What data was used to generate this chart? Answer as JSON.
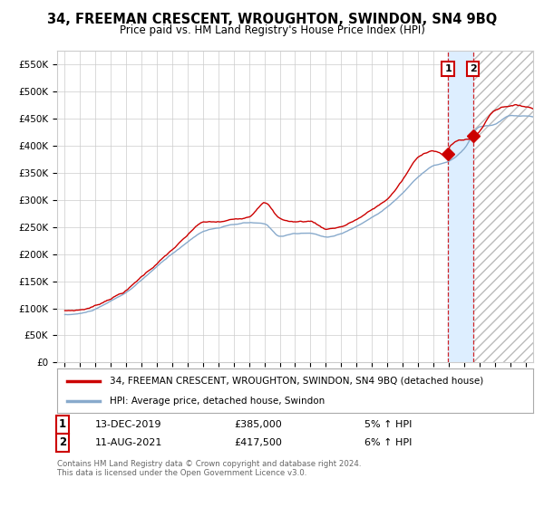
{
  "title": "34, FREEMAN CRESCENT, WROUGHTON, SWINDON, SN4 9BQ",
  "subtitle": "Price paid vs. HM Land Registry's House Price Index (HPI)",
  "legend_line1": "34, FREEMAN CRESCENT, WROUGHTON, SWINDON, SN4 9BQ (detached house)",
  "legend_line2": "HPI: Average price, detached house, Swindon",
  "transaction1_date": "13-DEC-2019",
  "transaction1_price": "£385,000",
  "transaction1_hpi": "5% ↑ HPI",
  "transaction2_date": "11-AUG-2021",
  "transaction2_price": "£417,500",
  "transaction2_hpi": "6% ↑ HPI",
  "footer": "Contains HM Land Registry data © Crown copyright and database right 2024.\nThis data is licensed under the Open Government Licence v3.0.",
  "ylim": [
    0,
    575000
  ],
  "yticks": [
    0,
    50000,
    100000,
    150000,
    200000,
    250000,
    300000,
    350000,
    400000,
    450000,
    500000,
    550000
  ],
  "ytick_labels": [
    "£0",
    "£50K",
    "£100K",
    "£150K",
    "£200K",
    "£250K",
    "£300K",
    "£350K",
    "£400K",
    "£450K",
    "£500K",
    "£550K"
  ],
  "line1_color": "#cc0000",
  "line2_color": "#88aacc",
  "marker_color": "#cc0000",
  "vline_color": "#cc0000",
  "shade_color": "#ddeeff",
  "grid_color": "#cccccc",
  "background_color": "#ffffff",
  "hatch_color": "#bbbbbb",
  "transaction1_x": 2019.958,
  "transaction1_y": 385000,
  "transaction2_x": 2021.583,
  "transaction2_y": 417500,
  "xlim_left": 1994.5,
  "xlim_right": 2025.5
}
